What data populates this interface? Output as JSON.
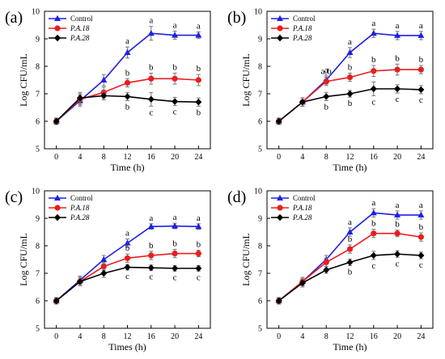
{
  "colors": {
    "control": "#1f1fe6",
    "pa18": "#e81e1e",
    "pa28": "#000000"
  },
  "chart_data": [
    {
      "panel_label": "(a)",
      "type": "line",
      "xlabel": "Time (h)",
      "ylabel": "Log CFU/mL",
      "x": [
        0,
        4,
        8,
        12,
        16,
        20,
        24
      ],
      "xticks": [
        "0",
        "4",
        "8",
        "12",
        "16",
        "20",
        "24"
      ],
      "ylim": [
        5,
        10
      ],
      "yticks": [
        "5",
        "6",
        "7",
        "8",
        "9",
        "10"
      ],
      "legend_position": "top-left",
      "series": [
        {
          "name": "Control",
          "color_key": "control",
          "marker": "triangle",
          "values": [
            6.0,
            6.75,
            7.5,
            8.5,
            9.2,
            9.13,
            9.13
          ],
          "errors": [
            0.12,
            0.2,
            0.2,
            0.2,
            0.25,
            0.15,
            0.12
          ],
          "labels": [
            "",
            "",
            "",
            "a",
            "a",
            "a",
            "a"
          ]
        },
        {
          "name": "P.A.18",
          "color_key": "pa18",
          "marker": "circle",
          "values": [
            6.0,
            6.8,
            7.05,
            7.4,
            7.55,
            7.55,
            7.5
          ],
          "errors": [
            0.1,
            0.2,
            0.2,
            0.15,
            0.2,
            0.2,
            0.2
          ],
          "labels": [
            "",
            "",
            "",
            "b",
            "b",
            "b",
            "b"
          ]
        },
        {
          "name": "P.A.28",
          "color_key": "pa28",
          "marker": "diamond",
          "values": [
            6.0,
            6.85,
            6.93,
            6.9,
            6.8,
            6.72,
            6.7
          ],
          "errors": [
            0.1,
            0.2,
            0.15,
            0.15,
            0.25,
            0.15,
            0.15
          ],
          "labels": [
            "",
            "",
            "",
            "b",
            "c",
            "c",
            "b"
          ]
        }
      ]
    },
    {
      "panel_label": "(b)",
      "type": "line",
      "xlabel": "Time (h)",
      "ylabel": "Log CFU/mL",
      "x": [
        0,
        4,
        8,
        12,
        16,
        20,
        24
      ],
      "xticks": [
        "0",
        "4",
        "8",
        "12",
        "16",
        "20",
        "24"
      ],
      "ylim": [
        5,
        10
      ],
      "yticks": [
        "5",
        "6",
        "7",
        "8",
        "9",
        "10"
      ],
      "legend_position": "top-left",
      "series": [
        {
          "name": "Control",
          "color_key": "control",
          "marker": "triangle",
          "values": [
            6.0,
            6.7,
            7.5,
            8.5,
            9.2,
            9.12,
            9.12
          ],
          "errors": [
            0.12,
            0.15,
            0.15,
            0.18,
            0.15,
            0.15,
            0.15
          ],
          "labels": [
            "",
            "",
            "a",
            "a",
            "a",
            "a",
            "a"
          ]
        },
        {
          "name": "P.A.18",
          "color_key": "pa18",
          "marker": "circle",
          "values": [
            6.0,
            6.7,
            7.45,
            7.6,
            7.83,
            7.88,
            7.88
          ],
          "errors": [
            0.1,
            0.15,
            0.15,
            0.15,
            0.2,
            0.2,
            0.15
          ],
          "labels": [
            "",
            "",
            "a,b",
            "b",
            "b",
            "b",
            "b"
          ]
        },
        {
          "name": "P.A.28",
          "color_key": "pa28",
          "marker": "diamond",
          "values": [
            6.0,
            6.7,
            6.9,
            7.0,
            7.18,
            7.18,
            7.15
          ],
          "errors": [
            0.1,
            0.15,
            0.15,
            0.12,
            0.25,
            0.15,
            0.15
          ],
          "labels": [
            "",
            "",
            "b",
            "b",
            "c",
            "c",
            "c"
          ]
        }
      ]
    },
    {
      "panel_label": "(c)",
      "type": "line",
      "xlabel": "Times (h)",
      "ylabel": "Log CFU/mL",
      "x": [
        0,
        4,
        8,
        12,
        16,
        20,
        24
      ],
      "xticks": [
        "0",
        "4",
        "8",
        "12",
        "16",
        "20",
        "24"
      ],
      "ylim": [
        5,
        10
      ],
      "yticks": [
        "5",
        "6",
        "7",
        "8",
        "9",
        "10"
      ],
      "legend_position": "top-left",
      "series": [
        {
          "name": "Control",
          "color_key": "control",
          "marker": "triangle",
          "values": [
            6.0,
            6.75,
            7.5,
            8.1,
            8.7,
            8.72,
            8.7
          ],
          "errors": [
            0.12,
            0.15,
            0.15,
            0.15,
            0.1,
            0.1,
            0.1
          ],
          "labels": [
            "",
            "",
            "",
            "a",
            "a",
            "a",
            "a"
          ]
        },
        {
          "name": "P.A.18",
          "color_key": "pa18",
          "marker": "circle",
          "values": [
            6.0,
            6.7,
            7.25,
            7.55,
            7.65,
            7.72,
            7.72
          ],
          "errors": [
            0.1,
            0.15,
            0.15,
            0.15,
            0.15,
            0.15,
            0.12
          ],
          "labels": [
            "",
            "",
            "",
            "b",
            "b",
            "b",
            "b"
          ]
        },
        {
          "name": "P.A.28",
          "color_key": "pa28",
          "marker": "diamond",
          "values": [
            6.0,
            6.7,
            7.0,
            7.22,
            7.2,
            7.18,
            7.18
          ],
          "errors": [
            0.1,
            0.15,
            0.15,
            0.1,
            0.1,
            0.1,
            0.1
          ],
          "labels": [
            "",
            "",
            "",
            "c",
            "c",
            "c",
            "c"
          ]
        }
      ]
    },
    {
      "panel_label": "(d)",
      "type": "line",
      "xlabel": "Time (h)",
      "ylabel": "Log CFU/mL",
      "x": [
        0,
        4,
        8,
        12,
        16,
        20,
        24
      ],
      "xticks": [
        "0",
        "4",
        "8",
        "12",
        "16",
        "20",
        "24"
      ],
      "ylim": [
        5,
        10
      ],
      "yticks": [
        "5",
        "6",
        "7",
        "8",
        "9",
        "10"
      ],
      "legend_position": "top-left",
      "series": [
        {
          "name": "Control",
          "color_key": "control",
          "marker": "triangle",
          "values": [
            6.0,
            6.7,
            7.5,
            8.5,
            9.2,
            9.12,
            9.12
          ],
          "errors": [
            0.12,
            0.15,
            0.15,
            0.15,
            0.15,
            0.15,
            0.15
          ],
          "labels": [
            "",
            "",
            "",
            "a",
            "a",
            "a",
            "a"
          ]
        },
        {
          "name": "P.A.18",
          "color_key": "pa18",
          "marker": "circle",
          "values": [
            6.0,
            6.7,
            7.4,
            7.88,
            8.45,
            8.45,
            8.32
          ],
          "errors": [
            0.1,
            0.15,
            0.15,
            0.15,
            0.15,
            0.12,
            0.15
          ],
          "labels": [
            "",
            "",
            "",
            "b",
            "b",
            "b",
            "b"
          ]
        },
        {
          "name": "P.A.28",
          "color_key": "pa28",
          "marker": "diamond",
          "values": [
            6.0,
            6.65,
            7.12,
            7.4,
            7.65,
            7.7,
            7.65
          ],
          "errors": [
            0.1,
            0.15,
            0.12,
            0.12,
            0.15,
            0.12,
            0.12
          ],
          "labels": [
            "",
            "",
            "",
            "b",
            "c",
            "c",
            "c"
          ]
        }
      ]
    }
  ]
}
